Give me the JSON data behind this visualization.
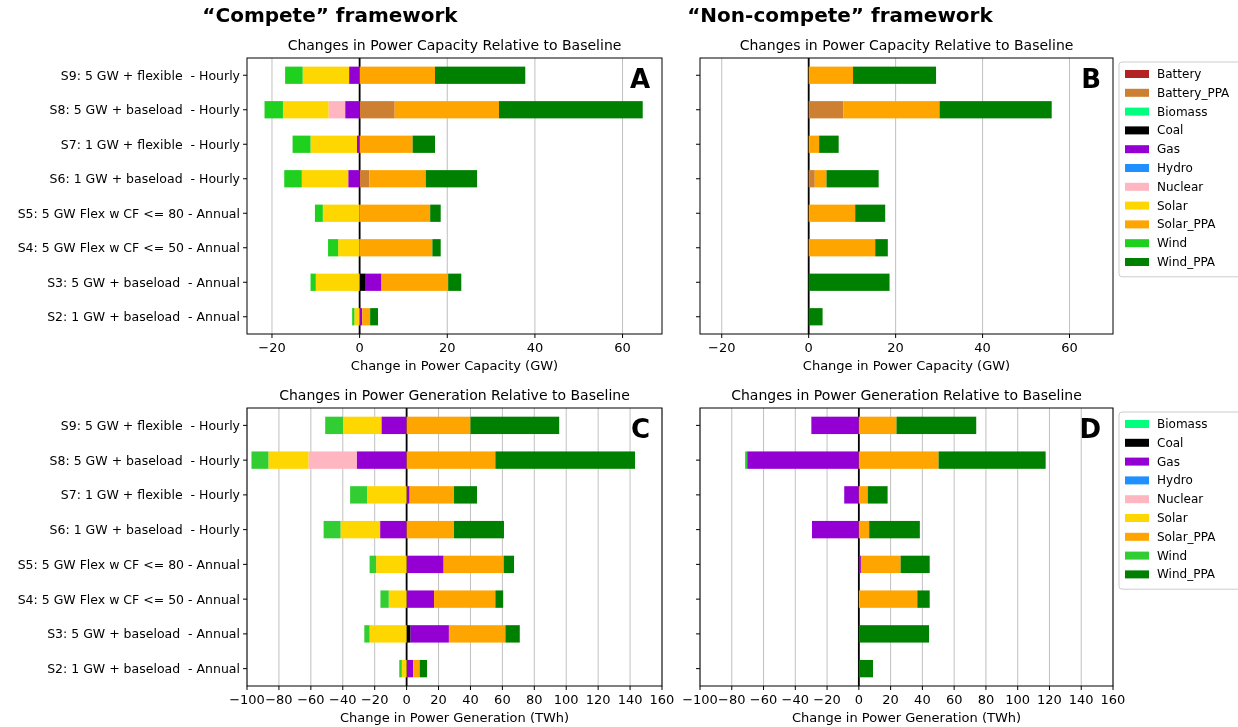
{
  "chart_data": [
    {
      "type": "bar",
      "orientation": "horizontal",
      "stacked": true,
      "subtitle": "“Compete” framework",
      "title": "Changes in Power Capacity Relative to Baseline",
      "xlabel": "Change in Power Capacity (GW)",
      "categories": [
        "S9: 5 GW + flexible  - Hourly",
        "S8: 5 GW + baseload  - Hourly",
        "S7: 1 GW + flexible  - Hourly",
        "S6: 1 GW + baseload  - Hourly",
        "S5: 5 GW Flex w CF <= 80 - Annual",
        "S4: 5 GW Flex w CF <= 50 - Annual",
        "S3: 5 GW + baseload  - Annual",
        "S2: 1 GW + baseload  - Annual"
      ],
      "xlim": [
        -25.7,
        69
      ],
      "xticks": [
        {
          "value": -20,
          "label": "−20"
        },
        0,
        20,
        40,
        60
      ],
      "grid": "x",
      "legend": false,
      "ref_lines": [
        {
          "axis": "x",
          "value": 0,
          "color": "#000000"
        }
      ],
      "annotations": [
        "A"
      ],
      "series": [
        {
          "color": "#cd7f32",
          "values": [
            0,
            8.0,
            0,
            2.2,
            0,
            0,
            0,
            0
          ]
        },
        {
          "color": "#000000",
          "values": [
            0,
            0,
            0,
            0,
            0,
            0,
            1.4,
            0
          ]
        },
        {
          "color": "#9400d3",
          "values": [
            -2.4,
            -3.3,
            -0.6,
            -2.6,
            0,
            0,
            3.6,
            0.6
          ]
        },
        {
          "color": "#ffb6c1",
          "values": [
            0,
            -3.8,
            0,
            0,
            0,
            0,
            0,
            0
          ]
        },
        {
          "color": "#ffd700",
          "values": [
            -10.6,
            -10.4,
            -10.6,
            -10.6,
            -8.4,
            -4.9,
            -10,
            -1.2
          ]
        },
        {
          "color": "#ffa500",
          "values": [
            17.2,
            23.8,
            12.1,
            12.9,
            16.1,
            16.6,
            15.2,
            1.8
          ]
        },
        {
          "color": "#1fd01f",
          "values": [
            -4,
            -4.2,
            -4.1,
            -4,
            -1.8,
            -2.3,
            -1.2,
            -0.5
          ]
        },
        {
          "color": "#008000",
          "values": [
            20.6,
            32.8,
            5.1,
            11.7,
            2.4,
            1.9,
            3.0,
            1.8
          ]
        }
      ]
    },
    {
      "type": "bar",
      "orientation": "horizontal",
      "stacked": true,
      "subtitle": "“Non-compete” framework",
      "title": "Changes in Power Capacity Relative to Baseline",
      "xlabel": "Change in Power Capacity (GW)",
      "categories": [
        null,
        null,
        null,
        null,
        null,
        null,
        null,
        null
      ],
      "tick_labels": "x",
      "xlim": [
        -25,
        70
      ],
      "xticks": [
        {
          "value": -20,
          "label": "−20"
        },
        0,
        20,
        40,
        60
      ],
      "grid": "x",
      "legend": "right",
      "ref_lines": [
        {
          "axis": "x",
          "value": 0,
          "color": "#000000"
        }
      ],
      "annotations": [
        "B"
      ],
      "series": [
        {
          "name": "Battery",
          "color": "#b22222",
          "values": [
            0,
            0,
            0,
            0,
            0,
            0,
            0,
            0
          ]
        },
        {
          "name": "Battery_PPA",
          "color": "#cd7f32",
          "values": [
            0,
            8.0,
            0,
            1.4,
            0,
            0,
            0,
            0
          ]
        },
        {
          "name": "Biomass",
          "color": "#00ff7f",
          "values": [
            0,
            0,
            0,
            0,
            0,
            0,
            0,
            0
          ]
        },
        {
          "name": "Coal",
          "color": "#000000",
          "values": [
            0,
            0,
            0,
            0,
            0,
            0,
            0,
            0
          ]
        },
        {
          "name": "Gas",
          "color": "#9400d3",
          "values": [
            0,
            0,
            0,
            0,
            0,
            0,
            0,
            0
          ]
        },
        {
          "name": "Hydro",
          "color": "#1e90ff",
          "values": [
            0,
            0,
            0,
            0,
            0,
            0,
            0,
            0
          ]
        },
        {
          "name": "Nuclear",
          "color": "#ffb6c1",
          "values": [
            0,
            0,
            0,
            0,
            0,
            0,
            0,
            0
          ]
        },
        {
          "name": "Solar",
          "color": "#ffd700",
          "values": [
            0,
            0,
            0,
            0,
            0,
            0,
            0,
            0
          ]
        },
        {
          "name": "Solar_PPA",
          "color": "#ffa500",
          "values": [
            10.2,
            22.1,
            2.4,
            2.7,
            10.7,
            15.3,
            0,
            0
          ]
        },
        {
          "name": "Wind",
          "color": "#1fd01f",
          "values": [
            0,
            0,
            0,
            0,
            0,
            0,
            0,
            0
          ]
        },
        {
          "name": "Wind_PPA",
          "color": "#008000",
          "values": [
            19.1,
            25.8,
            4.5,
            12.0,
            6.9,
            2.9,
            18.6,
            3.2
          ]
        }
      ]
    },
    {
      "type": "bar",
      "orientation": "horizontal",
      "stacked": true,
      "title": "Changes in Power Generation Relative to Baseline",
      "xlabel": "Change in Power Generation (TWh)",
      "categories": [
        "S9: 5 GW + flexible  - Hourly",
        "S8: 5 GW + baseload  - Hourly",
        "S7: 1 GW + flexible  - Hourly",
        "S6: 1 GW + baseload  - Hourly",
        "S5: 5 GW Flex w CF <= 80 - Annual",
        "S4: 5 GW Flex w CF <= 50 - Annual",
        "S3: 5 GW + baseload  - Annual",
        "S2: 1 GW + baseload  - Annual"
      ],
      "xlim": [
        -100,
        160
      ],
      "xticks": [
        {
          "value": -100,
          "label": "−100"
        },
        {
          "value": -80,
          "label": "−80"
        },
        {
          "value": -60,
          "label": "−60"
        },
        {
          "value": -40,
          "label": "−40"
        },
        {
          "value": -20,
          "label": "−20"
        },
        0,
        20,
        40,
        60,
        80,
        100,
        120,
        140,
        160
      ],
      "grid": "x",
      "legend": false,
      "ref_lines": [
        {
          "axis": "x",
          "value": 0,
          "color": "#000000"
        }
      ],
      "annotations": [
        "C"
      ],
      "series": [
        {
          "color": "#000000",
          "values": [
            0,
            0,
            0,
            0,
            0,
            0,
            2.5,
            0
          ]
        },
        {
          "color": "#9400d3",
          "values": [
            -15.8,
            -31.3,
            1.9,
            -16.6,
            23.2,
            17.2,
            24,
            4.1
          ]
        },
        {
          "color": "#ffb6c1",
          "values": [
            0,
            -30.2,
            0,
            0,
            0,
            0,
            0,
            0
          ]
        },
        {
          "color": "#ffd700",
          "values": [
            -24,
            -25.1,
            -24.8,
            -24.8,
            -19.1,
            -11.2,
            -23.2,
            -3
          ]
        },
        {
          "color": "#ffa500",
          "values": [
            40,
            55.6,
            27.8,
            29.7,
            37.6,
            38.4,
            35.4,
            4.1
          ]
        },
        {
          "color": "#32cd32",
          "values": [
            -11.2,
            -10.6,
            -10.6,
            -10.6,
            -4.1,
            -5.2,
            -3.3,
            -1.6
          ]
        },
        {
          "color": "#008000",
          "values": [
            55.6,
            87.5,
            14.4,
            31.3,
            6.5,
            4.9,
            9,
            4.6
          ]
        }
      ]
    },
    {
      "type": "bar",
      "orientation": "horizontal",
      "stacked": true,
      "title": "Changes in Power Generation Relative to Baseline",
      "xlabel": "Change in Power Generation (TWh)",
      "categories": [
        null,
        null,
        null,
        null,
        null,
        null,
        null,
        null
      ],
      "tick_labels": "x",
      "xlim": [
        -100,
        160
      ],
      "xticks": [
        {
          "value": -100,
          "label": "−100"
        },
        {
          "value": -80,
          "label": "−80"
        },
        {
          "value": -60,
          "label": "−60"
        },
        {
          "value": -40,
          "label": "−40"
        },
        {
          "value": -20,
          "label": "−20"
        },
        0,
        20,
        40,
        60,
        80,
        100,
        120,
        140,
        160
      ],
      "grid": "x",
      "legend": "right",
      "ref_lines": [
        {
          "axis": "x",
          "value": 0,
          "color": "#000000"
        }
      ],
      "annotations": [
        "D"
      ],
      "series": [
        {
          "name": "Biomass",
          "color": "#00ff7f",
          "values": [
            0,
            0,
            0,
            0,
            0,
            0,
            0,
            0
          ]
        },
        {
          "name": "Coal",
          "color": "#000000",
          "values": [
            0,
            0,
            0,
            0,
            0,
            0,
            0,
            0
          ]
        },
        {
          "name": "Gas",
          "color": "#9400d3",
          "values": [
            -29.9,
            -70.3,
            -9.2,
            -29.5,
            1.3,
            0,
            0,
            0
          ]
        },
        {
          "name": "Hydro",
          "color": "#1e90ff",
          "values": [
            0,
            0,
            0,
            0,
            0,
            0,
            0,
            0
          ]
        },
        {
          "name": "Nuclear",
          "color": "#ffb6c1",
          "values": [
            0,
            0,
            0,
            0,
            0,
            0,
            0,
            0
          ]
        },
        {
          "name": "Solar",
          "color": "#ffd700",
          "values": [
            0,
            0,
            0,
            0,
            0,
            0,
            0,
            0
          ]
        },
        {
          "name": "Solar_PPA",
          "color": "#ffa500",
          "values": [
            23.7,
            50.2,
            5.6,
            6.5,
            25,
            36.8,
            0,
            0
          ]
        },
        {
          "name": "Wind",
          "color": "#32cd32",
          "values": [
            0,
            -1.3,
            0,
            0,
            0,
            0,
            0,
            0
          ]
        },
        {
          "name": "Wind_PPA",
          "color": "#008000",
          "values": [
            50.2,
            67.4,
            12.5,
            31.9,
            18.3,
            7.8,
            44.2,
            8.9
          ]
        }
      ]
    }
  ]
}
